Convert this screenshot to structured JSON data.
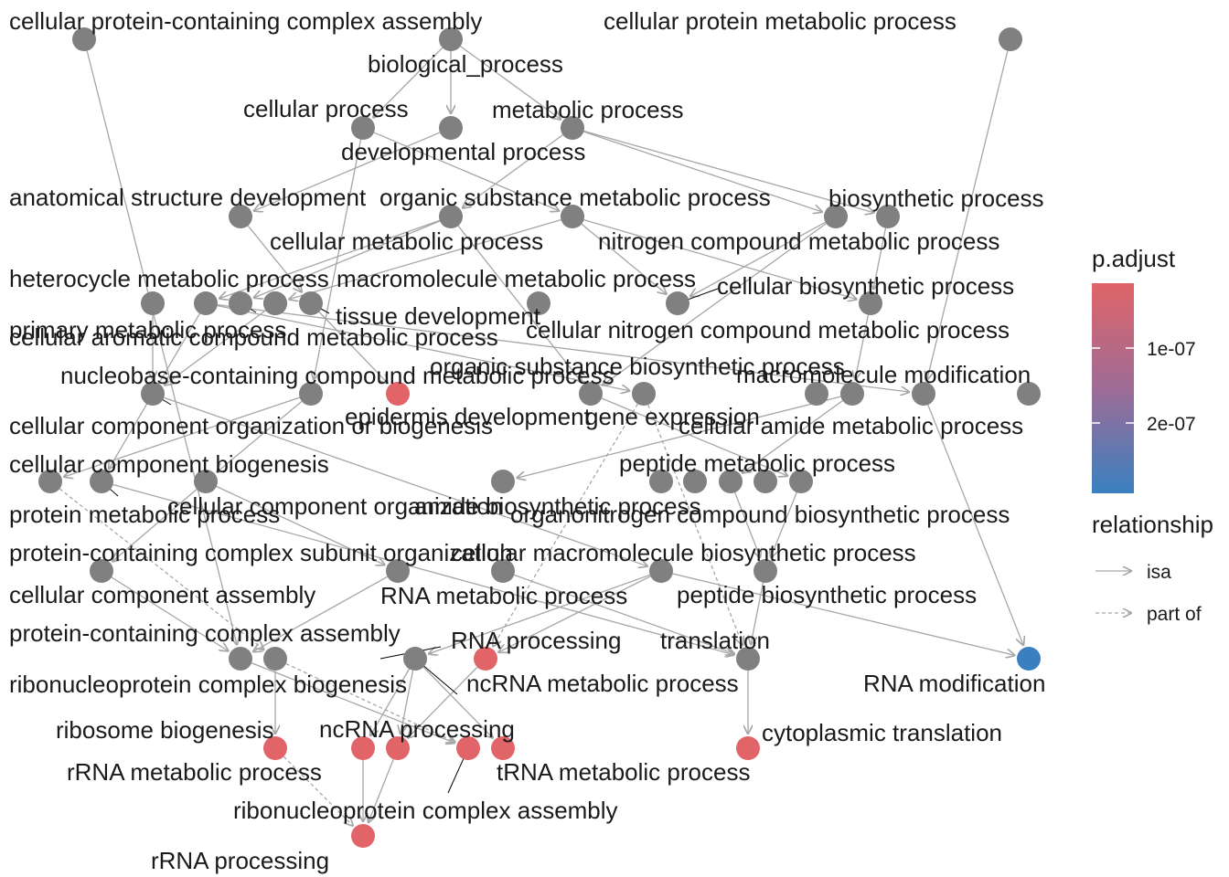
{
  "colors": {
    "high": "#e06468",
    "low": "#3a80c0",
    "none": "#808080",
    "edge": "#a6a6a6"
  },
  "legend": {
    "padjust_title": "p.adjust",
    "padjust_ticks": [
      "1e-07",
      "2e-07"
    ],
    "relationship_title": "relationship",
    "relationship_items": [
      "isa",
      "part of"
    ]
  },
  "nodes": [
    {
      "id": "cpcca",
      "label": "cellular protein-containing complex assembly",
      "status": "none"
    },
    {
      "id": "bp",
      "label": "biological_process",
      "status": "none"
    },
    {
      "id": "cpmp",
      "label": "cellular protein metabolic process",
      "status": "none"
    },
    {
      "id": "cp",
      "label": "cellular process",
      "status": "none"
    },
    {
      "id": "dp",
      "label": "developmental process",
      "status": "none"
    },
    {
      "id": "mp",
      "label": "metabolic process",
      "status": "none"
    },
    {
      "id": "asd",
      "label": "anatomical structure development",
      "status": "none"
    },
    {
      "id": "osmp",
      "label": "organic substance metabolic process",
      "status": "none"
    },
    {
      "id": "cmp",
      "label": "cellular metabolic process",
      "status": "none"
    },
    {
      "id": "bsp",
      "label": "biosynthetic process",
      "status": "none"
    },
    {
      "id": "ncmp",
      "label": "nitrogen compound metabolic process",
      "status": "none"
    },
    {
      "id": "hmp",
      "label": "heterocycle metabolic process",
      "status": "none"
    },
    {
      "id": "mmp",
      "label": "macromolecule metabolic process",
      "status": "none"
    },
    {
      "id": "td",
      "label": "tissue development",
      "status": "none"
    },
    {
      "id": "cbp",
      "label": "cellular biosynthetic process",
      "status": "none"
    },
    {
      "id": "pmp2",
      "label": "primary metabolic process",
      "status": "none"
    },
    {
      "id": "camp",
      "label": "cellular aromatic compound metabolic process",
      "status": "none"
    },
    {
      "id": "cncmp",
      "label": "cellular nitrogen compound metabolic process",
      "status": "none"
    },
    {
      "id": "nbcmp",
      "label": "nucleobase-containing compound metabolic process",
      "status": "none"
    },
    {
      "id": "epd",
      "label": "epidermis development",
      "status": "high"
    },
    {
      "id": "osbp",
      "label": "organic substance biosynthetic process",
      "status": "none"
    },
    {
      "id": "mmod",
      "label": "macromolecule modification",
      "status": "none"
    },
    {
      "id": "ge",
      "label": "gene expression",
      "status": "none"
    },
    {
      "id": "ccob",
      "label": "cellular component organization or biogenesis",
      "status": "none"
    },
    {
      "id": "cammp",
      "label": "cellular amide metabolic process",
      "status": "none"
    },
    {
      "id": "ccb",
      "label": "cellular component biogenesis",
      "status": "none"
    },
    {
      "id": "pepmp",
      "label": "peptide metabolic process",
      "status": "none"
    },
    {
      "id": "ccorg",
      "label": "cellular component organization",
      "status": "none"
    },
    {
      "id": "abp",
      "label": "amide biosynthetic process",
      "status": "none"
    },
    {
      "id": "protmp",
      "label": "protein metabolic process",
      "status": "none"
    },
    {
      "id": "oncbp",
      "label": "organonitrogen compound biosynthetic process",
      "status": "none"
    },
    {
      "id": "pcso",
      "label": "protein-containing complex subunit organization",
      "status": "none"
    },
    {
      "id": "cmbp",
      "label": "cellular macromolecule biosynthetic process",
      "status": "none"
    },
    {
      "id": "cca",
      "label": "cellular component assembly",
      "status": "none"
    },
    {
      "id": "rnamp",
      "label": "RNA metabolic process",
      "status": "none"
    },
    {
      "id": "pbp",
      "label": "peptide biosynthetic process",
      "status": "none"
    },
    {
      "id": "pcca",
      "label": "protein-containing complex assembly",
      "status": "none"
    },
    {
      "id": "rnap",
      "label": "RNA processing",
      "status": "high"
    },
    {
      "id": "transl",
      "label": "translation",
      "status": "none"
    },
    {
      "id": "rcb",
      "label": "ribonucleoprotein complex biogenesis",
      "status": "none"
    },
    {
      "id": "ncrnamp",
      "label": "ncRNA metabolic process",
      "status": "none"
    },
    {
      "id": "rnamod",
      "label": "RNA modification",
      "status": "low"
    },
    {
      "id": "rb",
      "label": "ribosome biogenesis",
      "status": "high"
    },
    {
      "id": "ncrnap",
      "label": "ncRNA processing",
      "status": "high"
    },
    {
      "id": "ct",
      "label": "cytoplasmic translation",
      "status": "high"
    },
    {
      "id": "rrnamp",
      "label": "rRNA metabolic process",
      "status": "high"
    },
    {
      "id": "trnamp",
      "label": "tRNA metabolic process",
      "status": "high"
    },
    {
      "id": "rca",
      "label": "ribonucleoprotein complex assembly",
      "status": "high"
    },
    {
      "id": "rrnap",
      "label": "rRNA processing",
      "status": "high"
    }
  ],
  "edges": [
    {
      "from": "bp",
      "to": "cp",
      "rel": "isa"
    },
    {
      "from": "bp",
      "to": "dp",
      "rel": "isa"
    },
    {
      "from": "bp",
      "to": "mp",
      "rel": "isa"
    },
    {
      "from": "cpcca",
      "to": "pcca",
      "rel": "isa"
    },
    {
      "from": "cpmp",
      "to": "mmod",
      "rel": "isa"
    },
    {
      "from": "cp",
      "to": "cmp",
      "rel": "isa"
    },
    {
      "from": "cp",
      "to": "ccob",
      "rel": "isa"
    },
    {
      "from": "mp",
      "to": "osmp",
      "rel": "isa"
    },
    {
      "from": "mp",
      "to": "bsp",
      "rel": "isa"
    },
    {
      "from": "mp",
      "to": "ncmp",
      "rel": "isa"
    },
    {
      "from": "dp",
      "to": "asd",
      "rel": "isa"
    },
    {
      "from": "asd",
      "to": "td",
      "rel": "isa"
    },
    {
      "from": "osmp",
      "to": "pmp2",
      "rel": "isa"
    },
    {
      "from": "osmp",
      "to": "mmp",
      "rel": "isa"
    },
    {
      "from": "osmp",
      "to": "osbp",
      "rel": "isa"
    },
    {
      "from": "cmp",
      "to": "cbp",
      "rel": "isa"
    },
    {
      "from": "cmp",
      "to": "cncmp",
      "rel": "isa"
    },
    {
      "from": "cmp",
      "to": "camp",
      "rel": "isa"
    },
    {
      "from": "bsp",
      "to": "osbp",
      "rel": "isa"
    },
    {
      "from": "bsp",
      "to": "cbp",
      "rel": "isa"
    },
    {
      "from": "ncmp",
      "to": "cncmp",
      "rel": "isa"
    },
    {
      "from": "hmp",
      "to": "nbcmp",
      "rel": "isa"
    },
    {
      "from": "mmp",
      "to": "mmod",
      "rel": "isa"
    },
    {
      "from": "mmp",
      "to": "ge",
      "rel": "isa"
    },
    {
      "from": "mmp",
      "to": "protmp",
      "rel": "isa"
    },
    {
      "from": "td",
      "to": "epd",
      "rel": "isa"
    },
    {
      "from": "camp",
      "to": "nbcmp",
      "rel": "isa"
    },
    {
      "from": "cncmp",
      "to": "cammp",
      "rel": "isa"
    },
    {
      "from": "nbcmp",
      "to": "rnamp",
      "rel": "isa"
    },
    {
      "from": "osbp",
      "to": "oncbp",
      "rel": "isa"
    },
    {
      "from": "mmod",
      "to": "rnamod",
      "rel": "isa"
    },
    {
      "from": "ge",
      "to": "rnap",
      "rel": "part"
    },
    {
      "from": "ge",
      "to": "transl",
      "rel": "part"
    },
    {
      "from": "ccob",
      "to": "ccb",
      "rel": "isa"
    },
    {
      "from": "ccob",
      "to": "ccorg",
      "rel": "isa"
    },
    {
      "from": "cammp",
      "to": "pepmp",
      "rel": "isa"
    },
    {
      "from": "cammp",
      "to": "abp",
      "rel": "isa"
    },
    {
      "from": "ccb",
      "to": "rcb",
      "rel": "part"
    },
    {
      "from": "ccorg",
      "to": "pcso",
      "rel": "isa"
    },
    {
      "from": "ccorg",
      "to": "cca",
      "rel": "isa"
    },
    {
      "from": "pepmp",
      "to": "pbp",
      "rel": "isa"
    },
    {
      "from": "protmp",
      "to": "transl",
      "rel": "isa"
    },
    {
      "from": "oncbp",
      "to": "pbp",
      "rel": "isa"
    },
    {
      "from": "pcso",
      "to": "pcca",
      "rel": "isa"
    },
    {
      "from": "cmbp",
      "to": "transl",
      "rel": "isa"
    },
    {
      "from": "cca",
      "to": "pcca",
      "rel": "isa"
    },
    {
      "from": "rnamp",
      "to": "rnap",
      "rel": "isa"
    },
    {
      "from": "rnamp",
      "to": "ncrnamp",
      "rel": "isa"
    },
    {
      "from": "rnamp",
      "to": "rnamod",
      "rel": "isa"
    },
    {
      "from": "pbp",
      "to": "transl",
      "rel": "isa"
    },
    {
      "from": "pcca",
      "to": "rca",
      "rel": "isa"
    },
    {
      "from": "rnap",
      "to": "ncrnap",
      "rel": "isa"
    },
    {
      "from": "transl",
      "to": "ct",
      "rel": "isa"
    },
    {
      "from": "rcb",
      "to": "rb",
      "rel": "isa"
    },
    {
      "from": "rcb",
      "to": "rca",
      "rel": "part"
    },
    {
      "from": "ncrnamp",
      "to": "ncrnap",
      "rel": "isa"
    },
    {
      "from": "ncrnamp",
      "to": "rrnamp",
      "rel": "isa"
    },
    {
      "from": "ncrnamp",
      "to": "trnamp",
      "rel": "isa"
    },
    {
      "from": "rb",
      "to": "rrnap",
      "rel": "part"
    },
    {
      "from": "ncrnap",
      "to": "rrnap",
      "rel": "isa"
    },
    {
      "from": "rrnamp",
      "to": "rrnap",
      "rel": "isa"
    }
  ]
}
